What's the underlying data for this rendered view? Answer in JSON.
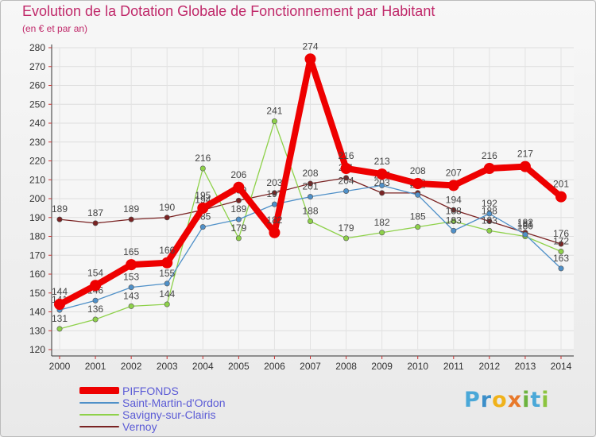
{
  "chart_data": {
    "type": "line",
    "title": "Evolution de la Dotation Globale de Fonctionnement par Habitant",
    "subtitle": "(en € et par an)",
    "xlabel": "",
    "ylabel": "",
    "ylim": [
      120,
      280
    ],
    "yticks": [
      120,
      130,
      140,
      150,
      160,
      170,
      180,
      190,
      200,
      210,
      220,
      230,
      240,
      250,
      260,
      270,
      280
    ],
    "grid": true,
    "legend_position": "bottom-left",
    "categories": [
      "2000",
      "2001",
      "2002",
      "2003",
      "2004",
      "2005",
      "2006",
      "2007",
      "2008",
      "2009",
      "2010",
      "2011",
      "2012",
      "2013",
      "2014"
    ],
    "series": [
      {
        "name": "Vernoy",
        "color": "#7a2323",
        "values": [
          189,
          187,
          189,
          190,
          194,
          199,
          203,
          208,
          211,
          203,
          203,
          194,
          188,
          182,
          176
        ],
        "labels": [
          "189",
          "187",
          "189",
          "190",
          "194",
          "199",
          "203",
          "208",
          "211",
          "203",
          "203",
          "194",
          "188",
          "182",
          "176"
        ]
      },
      {
        "name": "Savigny-sur-Clairis",
        "color": "#8ed14a",
        "values": [
          131,
          136,
          143,
          144,
          216,
          179,
          241,
          188,
          179,
          182,
          185,
          188,
          183,
          180,
          172
        ],
        "labels": [
          "131",
          "136",
          "143",
          "144",
          "216",
          "179",
          "241",
          "188",
          "179",
          "182",
          "185",
          "188",
          "183",
          "180",
          "172"
        ]
      },
      {
        "name": "Saint-Martin-d'Ordon",
        "color": "#4f90c8",
        "values": [
          141,
          146,
          153,
          155,
          185,
          189,
          197,
          201,
          204,
          207,
          202,
          183,
          192,
          181,
          163
        ],
        "labels": [
          "141",
          "146",
          "153",
          "155",
          "185",
          "189",
          "197",
          "201",
          "204",
          "207",
          "202",
          "183",
          "192",
          "181",
          "163"
        ]
      },
      {
        "name": "PIFFONDS",
        "color": "#ee0000",
        "values": [
          144,
          154,
          165,
          166,
          195,
          206,
          182,
          274,
          216,
          213,
          208,
          207,
          216,
          217,
          201
        ],
        "labels": [
          "144",
          "154",
          "165",
          "166",
          "195",
          "206",
          "182",
          "274",
          "216",
          "213",
          "208",
          "207",
          "216",
          "217",
          "201"
        ]
      }
    ]
  },
  "legend": {
    "items": [
      {
        "name": "PIFFONDS",
        "color": "#ee0000"
      },
      {
        "name": "Saint-Martin-d'Ordon",
        "color": "#4f90c8"
      },
      {
        "name": "Savigny-sur-Clairis",
        "color": "#8ed14a"
      },
      {
        "name": "Vernoy",
        "color": "#7a2323"
      }
    ]
  },
  "brand": {
    "letters": [
      "P",
      "r",
      "o",
      "x",
      "i",
      "t",
      "i"
    ],
    "colors": [
      "#4aa8d8",
      "#3c8fc9",
      "#f0b21a",
      "#e8792b",
      "#6cb33e",
      "#4aa8d8",
      "#8cc43f"
    ]
  }
}
